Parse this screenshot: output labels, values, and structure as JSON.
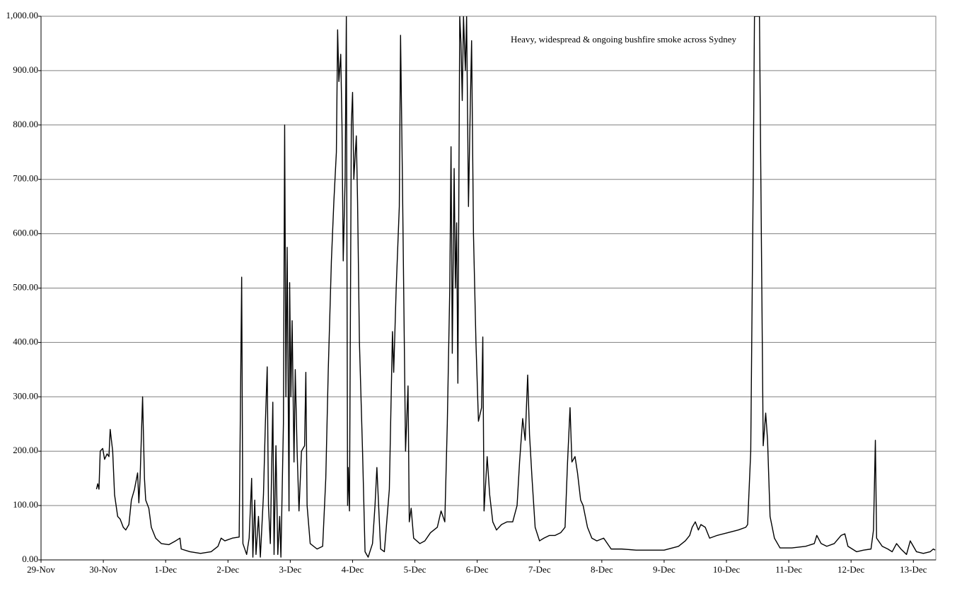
{
  "chart_data": {
    "type": "line",
    "annotation": "Heavy, widespread & ongoing bushfire smoke across Sydney",
    "xlim": [
      0,
      14.36
    ],
    "xticks": [
      {
        "value": 0,
        "label": "29-Nov"
      },
      {
        "value": 1,
        "label": "30-Nov"
      },
      {
        "value": 2,
        "label": "1-Dec"
      },
      {
        "value": 3,
        "label": "2-Dec"
      },
      {
        "value": 4,
        "label": "3-Dec"
      },
      {
        "value": 5,
        "label": "4-Dec"
      },
      {
        "value": 6,
        "label": "5-Dec"
      },
      {
        "value": 7,
        "label": "6-Dec"
      },
      {
        "value": 8,
        "label": "7-Dec"
      },
      {
        "value": 9,
        "label": "8-Dec"
      },
      {
        "value": 10,
        "label": "9-Dec"
      },
      {
        "value": 11,
        "label": "10-Dec"
      },
      {
        "value": 12,
        "label": "11-Dec"
      },
      {
        "value": 13,
        "label": "12-Dec"
      },
      {
        "value": 14,
        "label": "13-Dec"
      }
    ],
    "ylim": [
      0,
      1000
    ],
    "yticks": [
      {
        "value": 0,
        "label": "0.00"
      },
      {
        "value": 100,
        "label": "100.00"
      },
      {
        "value": 200,
        "label": "200.00"
      },
      {
        "value": 300,
        "label": "300.00"
      },
      {
        "value": 400,
        "label": "400.00"
      },
      {
        "value": 500,
        "label": "500.00"
      },
      {
        "value": 600,
        "label": "600.00"
      },
      {
        "value": 700,
        "label": "700.00"
      },
      {
        "value": 800,
        "label": "800.00"
      },
      {
        "value": 900,
        "label": "900.00"
      },
      {
        "value": 1000,
        "label": "1,000.00"
      }
    ],
    "grid": true,
    "color": "#000000",
    "x": [
      0.89,
      0.91,
      0.93,
      0.95,
      0.99,
      1.02,
      1.06,
      1.09,
      1.11,
      1.15,
      1.18,
      1.23,
      1.27,
      1.32,
      1.36,
      1.41,
      1.45,
      1.5,
      1.55,
      1.57,
      1.59,
      1.63,
      1.66,
      1.68,
      1.73,
      1.77,
      1.84,
      1.93,
      2.05,
      2.16,
      2.23,
      2.25,
      2.39,
      2.56,
      2.73,
      2.84,
      2.89,
      2.95,
      3.07,
      3.18,
      3.22,
      3.24,
      3.3,
      3.34,
      3.38,
      3.4,
      3.43,
      3.45,
      3.49,
      3.52,
      3.57,
      3.6,
      3.63,
      3.65,
      3.68,
      3.72,
      3.74,
      3.77,
      3.8,
      3.83,
      3.85,
      3.89,
      3.91,
      3.93,
      3.95,
      3.98,
      3.99,
      4.01,
      4.03,
      4.06,
      4.08,
      4.11,
      4.14,
      4.18,
      4.23,
      4.25,
      4.27,
      4.32,
      4.43,
      4.52,
      4.57,
      4.61,
      4.66,
      4.7,
      4.74,
      4.76,
      4.78,
      4.81,
      4.83,
      4.85,
      4.88,
      4.9,
      4.92,
      4.93,
      4.95,
      4.98,
      5.0,
      5.02,
      5.06,
      5.08,
      5.11,
      5.16,
      5.2,
      5.25,
      5.32,
      5.36,
      5.39,
      5.42,
      5.45,
      5.51,
      5.59,
      5.64,
      5.66,
      5.7,
      5.75,
      5.77,
      5.8,
      5.83,
      5.85,
      5.89,
      5.91,
      5.94,
      5.98,
      6.08,
      6.16,
      6.25,
      6.36,
      6.42,
      6.48,
      6.52,
      6.56,
      6.58,
      6.6,
      6.63,
      6.65,
      6.67,
      6.69,
      6.72,
      6.74,
      6.76,
      6.78,
      6.81,
      6.83,
      6.86,
      6.89,
      6.91,
      6.94,
      6.98,
      7.02,
      7.07,
      7.09,
      7.11,
      7.16,
      7.2,
      7.25,
      7.31,
      7.39,
      7.48,
      7.57,
      7.64,
      7.68,
      7.73,
      7.77,
      7.81,
      7.84,
      7.88,
      7.93,
      8.0,
      8.07,
      8.16,
      8.25,
      8.34,
      8.41,
      8.45,
      8.49,
      8.52,
      8.57,
      8.61,
      8.66,
      8.7,
      8.77,
      8.84,
      8.92,
      9.03,
      9.15,
      9.32,
      9.55,
      9.77,
      10.0,
      10.23,
      10.34,
      10.41,
      10.45,
      10.5,
      10.55,
      10.59,
      10.66,
      10.73,
      10.85,
      11.02,
      11.19,
      11.31,
      11.34,
      11.39,
      11.43,
      11.45,
      11.5,
      11.53,
      11.56,
      11.59,
      11.63,
      11.66,
      11.7,
      11.77,
      11.86,
      12.05,
      12.27,
      12.41,
      12.45,
      12.52,
      12.61,
      12.73,
      12.84,
      12.9,
      12.95,
      13.09,
      13.2,
      13.32,
      13.36,
      13.39,
      13.41,
      13.5,
      13.59,
      13.66,
      13.73,
      13.8,
      13.89,
      13.95,
      14.05,
      14.16,
      14.27,
      14.32,
      14.35
    ],
    "values": [
      130,
      140,
      130,
      200,
      205,
      185,
      195,
      190,
      240,
      200,
      120,
      80,
      75,
      60,
      55,
      65,
      110,
      130,
      160,
      105,
      150,
      300,
      150,
      110,
      95,
      60,
      40,
      30,
      28,
      35,
      40,
      20,
      15,
      12,
      15,
      25,
      40,
      35,
      40,
      42,
      520,
      30,
      10,
      40,
      150,
      5,
      110,
      10,
      80,
      5,
      120,
      250,
      355,
      100,
      30,
      290,
      10,
      210,
      10,
      80,
      5,
      250,
      800,
      300,
      575,
      90,
      510,
      300,
      440,
      180,
      350,
      200,
      90,
      200,
      210,
      345,
      100,
      30,
      20,
      25,
      150,
      350,
      550,
      660,
      750,
      975,
      880,
      930,
      800,
      550,
      700,
      1000,
      100,
      170,
      90,
      800,
      860,
      700,
      780,
      660,
      400,
      200,
      15,
      5,
      30,
      100,
      170,
      95,
      20,
      15,
      130,
      420,
      345,
      500,
      650,
      965,
      700,
      400,
      200,
      320,
      70,
      95,
      40,
      30,
      35,
      50,
      60,
      90,
      70,
      250,
      500,
      760,
      380,
      720,
      500,
      620,
      325,
      1000,
      950,
      845,
      1000,
      900,
      1000,
      650,
      840,
      955,
      600,
      400,
      255,
      280,
      410,
      90,
      190,
      120,
      70,
      55,
      65,
      70,
      70,
      100,
      180,
      260,
      220,
      340,
      230,
      150,
      60,
      35,
      40,
      45,
      45,
      50,
      60,
      180,
      280,
      180,
      190,
      160,
      110,
      100,
      60,
      40,
      35,
      40,
      20,
      20,
      18,
      18,
      18,
      25,
      35,
      45,
      60,
      70,
      55,
      65,
      60,
      40,
      45,
      50,
      55,
      60,
      65,
      200,
      700,
      1000,
      1000,
      1000,
      600,
      210,
      270,
      220,
      80,
      40,
      22,
      22,
      25,
      30,
      45,
      30,
      25,
      30,
      45,
      48,
      25,
      15,
      18,
      20,
      55,
      220,
      40,
      25,
      20,
      15,
      30,
      20,
      10,
      35,
      15,
      12,
      15,
      20,
      18
    ]
  }
}
